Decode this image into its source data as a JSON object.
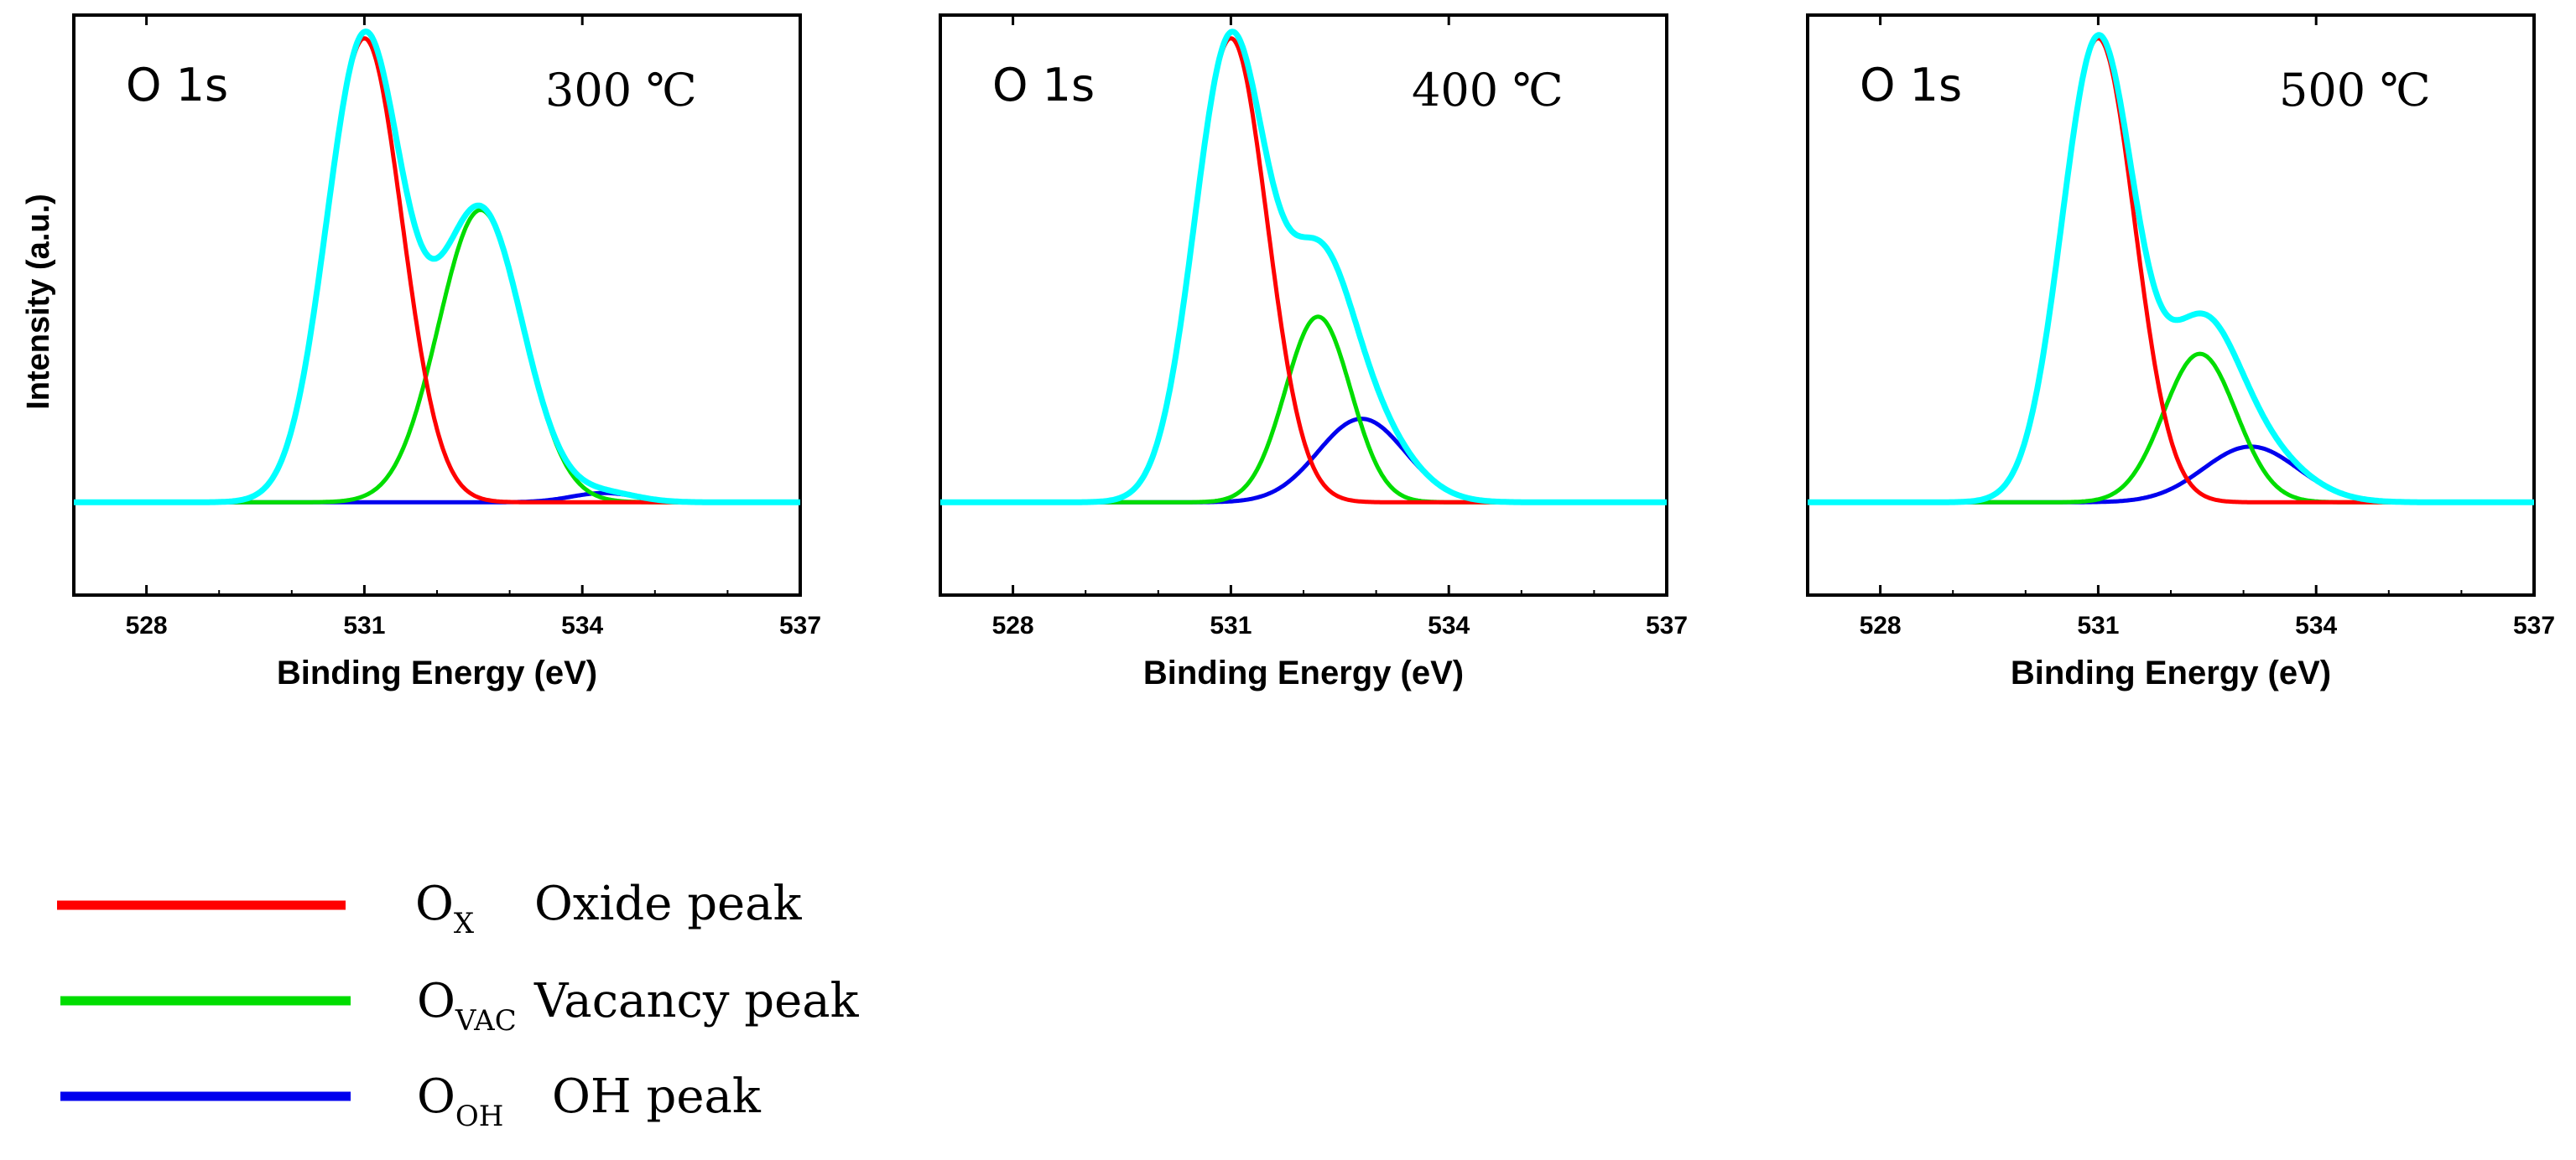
{
  "chart_data": [
    {
      "type": "line",
      "panel_label": "O 1s",
      "temperature": "300 ℃",
      "xlabel": "Binding Energy (eV)",
      "ylabel": "Intensity (a.u.)",
      "xlim": [
        527,
        537
      ],
      "ylim": [
        -0.2,
        1.05
      ],
      "xticks": [
        528,
        531,
        534,
        537
      ],
      "xtick_labels": [
        "528",
        "531",
        "534",
        "537"
      ],
      "grid": false,
      "peaks": [
        {
          "name": "Ox",
          "center": 531.0,
          "height": 1.0,
          "sigma": 0.52
        },
        {
          "name": "Ovac",
          "center": 532.6,
          "height": 0.63,
          "sigma": 0.58
        },
        {
          "name": "Ooh",
          "center": 534.3,
          "height": 0.02,
          "sigma": 0.45
        }
      ]
    },
    {
      "type": "line",
      "panel_label": "O 1s",
      "temperature": "400 ℃",
      "xlabel": "Binding Energy (eV)",
      "ylabel": "",
      "xlim": [
        527,
        537
      ],
      "ylim": [
        -0.2,
        1.05
      ],
      "xticks": [
        528,
        531,
        534,
        537
      ],
      "xtick_labels": [
        "528",
        "531",
        "534",
        "537"
      ],
      "grid": false,
      "peaks": [
        {
          "name": "Ox",
          "center": 531.0,
          "height": 1.0,
          "sigma": 0.5
        },
        {
          "name": "Ovac",
          "center": 532.2,
          "height": 0.4,
          "sigma": 0.45
        },
        {
          "name": "Ooh",
          "center": 532.8,
          "height": 0.18,
          "sigma": 0.6
        }
      ]
    },
    {
      "type": "line",
      "panel_label": "O 1s",
      "temperature": "500 ℃",
      "xlabel": "Binding Energy (eV)",
      "ylabel": "",
      "xlim": [
        527,
        537
      ],
      "ylim": [
        -0.2,
        1.05
      ],
      "xticks": [
        528,
        531,
        534,
        537
      ],
      "xtick_labels": [
        "528",
        "531",
        "534",
        "537"
      ],
      "grid": false,
      "peaks": [
        {
          "name": "Ox",
          "center": 531.0,
          "height": 1.0,
          "sigma": 0.5
        },
        {
          "name": "Ovac",
          "center": 532.4,
          "height": 0.32,
          "sigma": 0.5
        },
        {
          "name": "Ooh",
          "center": 533.1,
          "height": 0.12,
          "sigma": 0.65
        }
      ]
    }
  ],
  "series_colors": {
    "Ox": "#ff0000",
    "Ovac": "#00dd00",
    "Ooh": "#0000ee",
    "Envelope": "#00ffff"
  },
  "legend": [
    {
      "key": "Ox",
      "symbol": "O",
      "subscript": "X",
      "label": "Oxide peak",
      "color": "#ff0000"
    },
    {
      "key": "Ovac",
      "symbol": "O",
      "subscript": "VAC",
      "label": "Vacancy peak",
      "color": "#00dd00"
    },
    {
      "key": "Ooh",
      "symbol": "O",
      "subscript": "OH",
      "label": "OH peak",
      "color": "#0000ee"
    }
  ]
}
